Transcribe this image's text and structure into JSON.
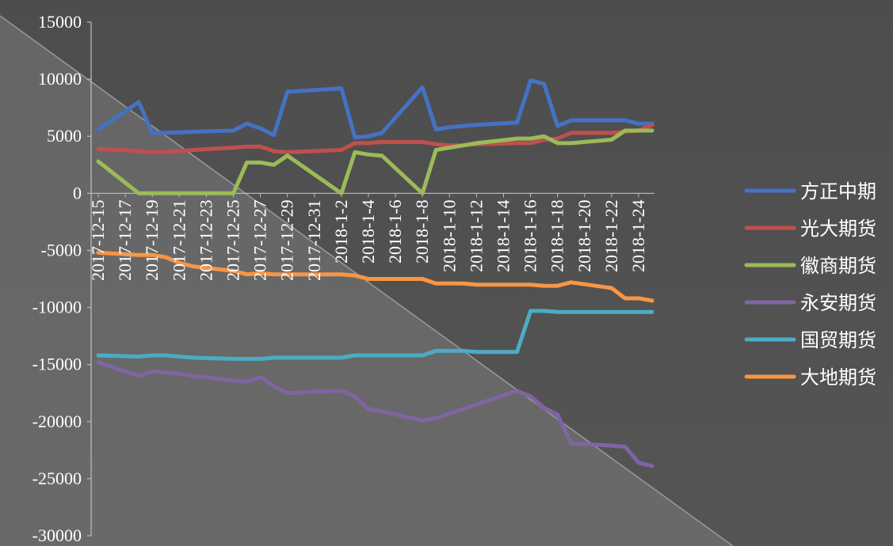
{
  "chart_data": {
    "type": "line",
    "title": "",
    "xlabel": "",
    "ylabel": "",
    "ylim": [
      -30000,
      15000
    ],
    "yticks": [
      15000,
      10000,
      5000,
      0,
      -5000,
      -10000,
      -15000,
      -20000,
      -25000,
      -30000
    ],
    "grid": false,
    "legend_position": "right",
    "x": [
      "2017-12-15",
      "2017-12-18",
      "2017-12-19",
      "2017-12-20",
      "2017-12-21",
      "2017-12-22",
      "2017-12-25",
      "2017-12-26",
      "2017-12-27",
      "2017-12-28",
      "2017-12-29",
      "2018-1-2",
      "2018-1-3",
      "2018-1-4",
      "2018-1-5",
      "2018-1-8",
      "2018-1-9",
      "2018-1-10",
      "2018-1-11",
      "2018-1-12",
      "2018-1-15",
      "2018-1-16",
      "2018-1-17",
      "2018-1-18",
      "2018-1-19",
      "2018-1-22",
      "2018-1-23",
      "2018-1-24",
      "2018-1-25"
    ],
    "x_tick_labels": [
      "2017-12-15",
      "2017-12-17",
      "2017-12-19",
      "2017-12-21",
      "2017-12-23",
      "2017-12-25",
      "2017-12-27",
      "2017-12-29",
      "2017-12-31",
      "2018-1-2",
      "2018-1-4",
      "2018-1-6",
      "2018-1-8",
      "2018-1-10",
      "2018-1-12",
      "2018-1-14",
      "2018-1-16",
      "2018-1-18",
      "2018-1-20",
      "2018-1-22",
      "2018-1-24"
    ],
    "series": [
      {
        "name": "方正中期",
        "color": "#4472c4",
        "values": [
          5600,
          8000,
          5300,
          5300,
          5350,
          5400,
          5500,
          6100,
          5700,
          5100,
          8900,
          9200,
          4900,
          5000,
          5300,
          9300,
          5600,
          5800,
          5900,
          6000,
          6200,
          9900,
          9600,
          5900,
          6400,
          6400,
          6400,
          6100,
          6100
        ]
      },
      {
        "name": "光大期货",
        "color": "#c0504d",
        "values": [
          3900,
          3700,
          3600,
          3600,
          3700,
          3800,
          4000,
          4100,
          4100,
          3700,
          3600,
          3800,
          4400,
          4400,
          4500,
          4500,
          4300,
          4200,
          4200,
          4300,
          4400,
          4400,
          4700,
          4800,
          5300,
          5300,
          5400,
          5500,
          6000
        ]
      },
      {
        "name": "徽商期货",
        "color": "#9bbb59",
        "values": [
          2800,
          0,
          0,
          0,
          0,
          0,
          0,
          2700,
          2700,
          2500,
          3300,
          0,
          3600,
          3400,
          3300,
          0,
          3800,
          4000,
          4200,
          4400,
          4800,
          4800,
          5000,
          4400,
          4400,
          4700,
          5500,
          5500,
          5500
        ]
      },
      {
        "name": "永安期货",
        "color": "#8064a2",
        "values": [
          -14800,
          -16000,
          -15600,
          -15700,
          -15800,
          -16000,
          -16400,
          -16500,
          -16100,
          -16900,
          -17500,
          -17300,
          -17800,
          -18900,
          -19100,
          -19900,
          -19700,
          -19300,
          -18900,
          -18500,
          -17300,
          -17800,
          -18800,
          -19400,
          -21900,
          -22100,
          -22200,
          -23600,
          -23900
        ]
      },
      {
        "name": "国贸期货",
        "color": "#4bacc6",
        "values": [
          -14200,
          -14300,
          -14200,
          -14200,
          -14300,
          -14400,
          -14500,
          -14500,
          -14500,
          -14400,
          -14400,
          -14400,
          -14200,
          -14200,
          -14200,
          -14200,
          -13800,
          -13800,
          -13800,
          -13900,
          -13900,
          -10300,
          -10300,
          -10400,
          -10400,
          -10400,
          -10400,
          -10400,
          -10400
        ]
      },
      {
        "name": "大地期货",
        "color": "#f79646",
        "values": [
          -5200,
          -5400,
          -5400,
          -5600,
          -6100,
          -6400,
          -6800,
          -7100,
          -7000,
          -7100,
          -7100,
          -7100,
          -7200,
          -7500,
          -7500,
          -7500,
          -7900,
          -7900,
          -7900,
          -8000,
          -8000,
          -8000,
          -8100,
          -8100,
          -7800,
          -8300,
          -9200,
          -9200,
          -9400
        ]
      }
    ]
  }
}
